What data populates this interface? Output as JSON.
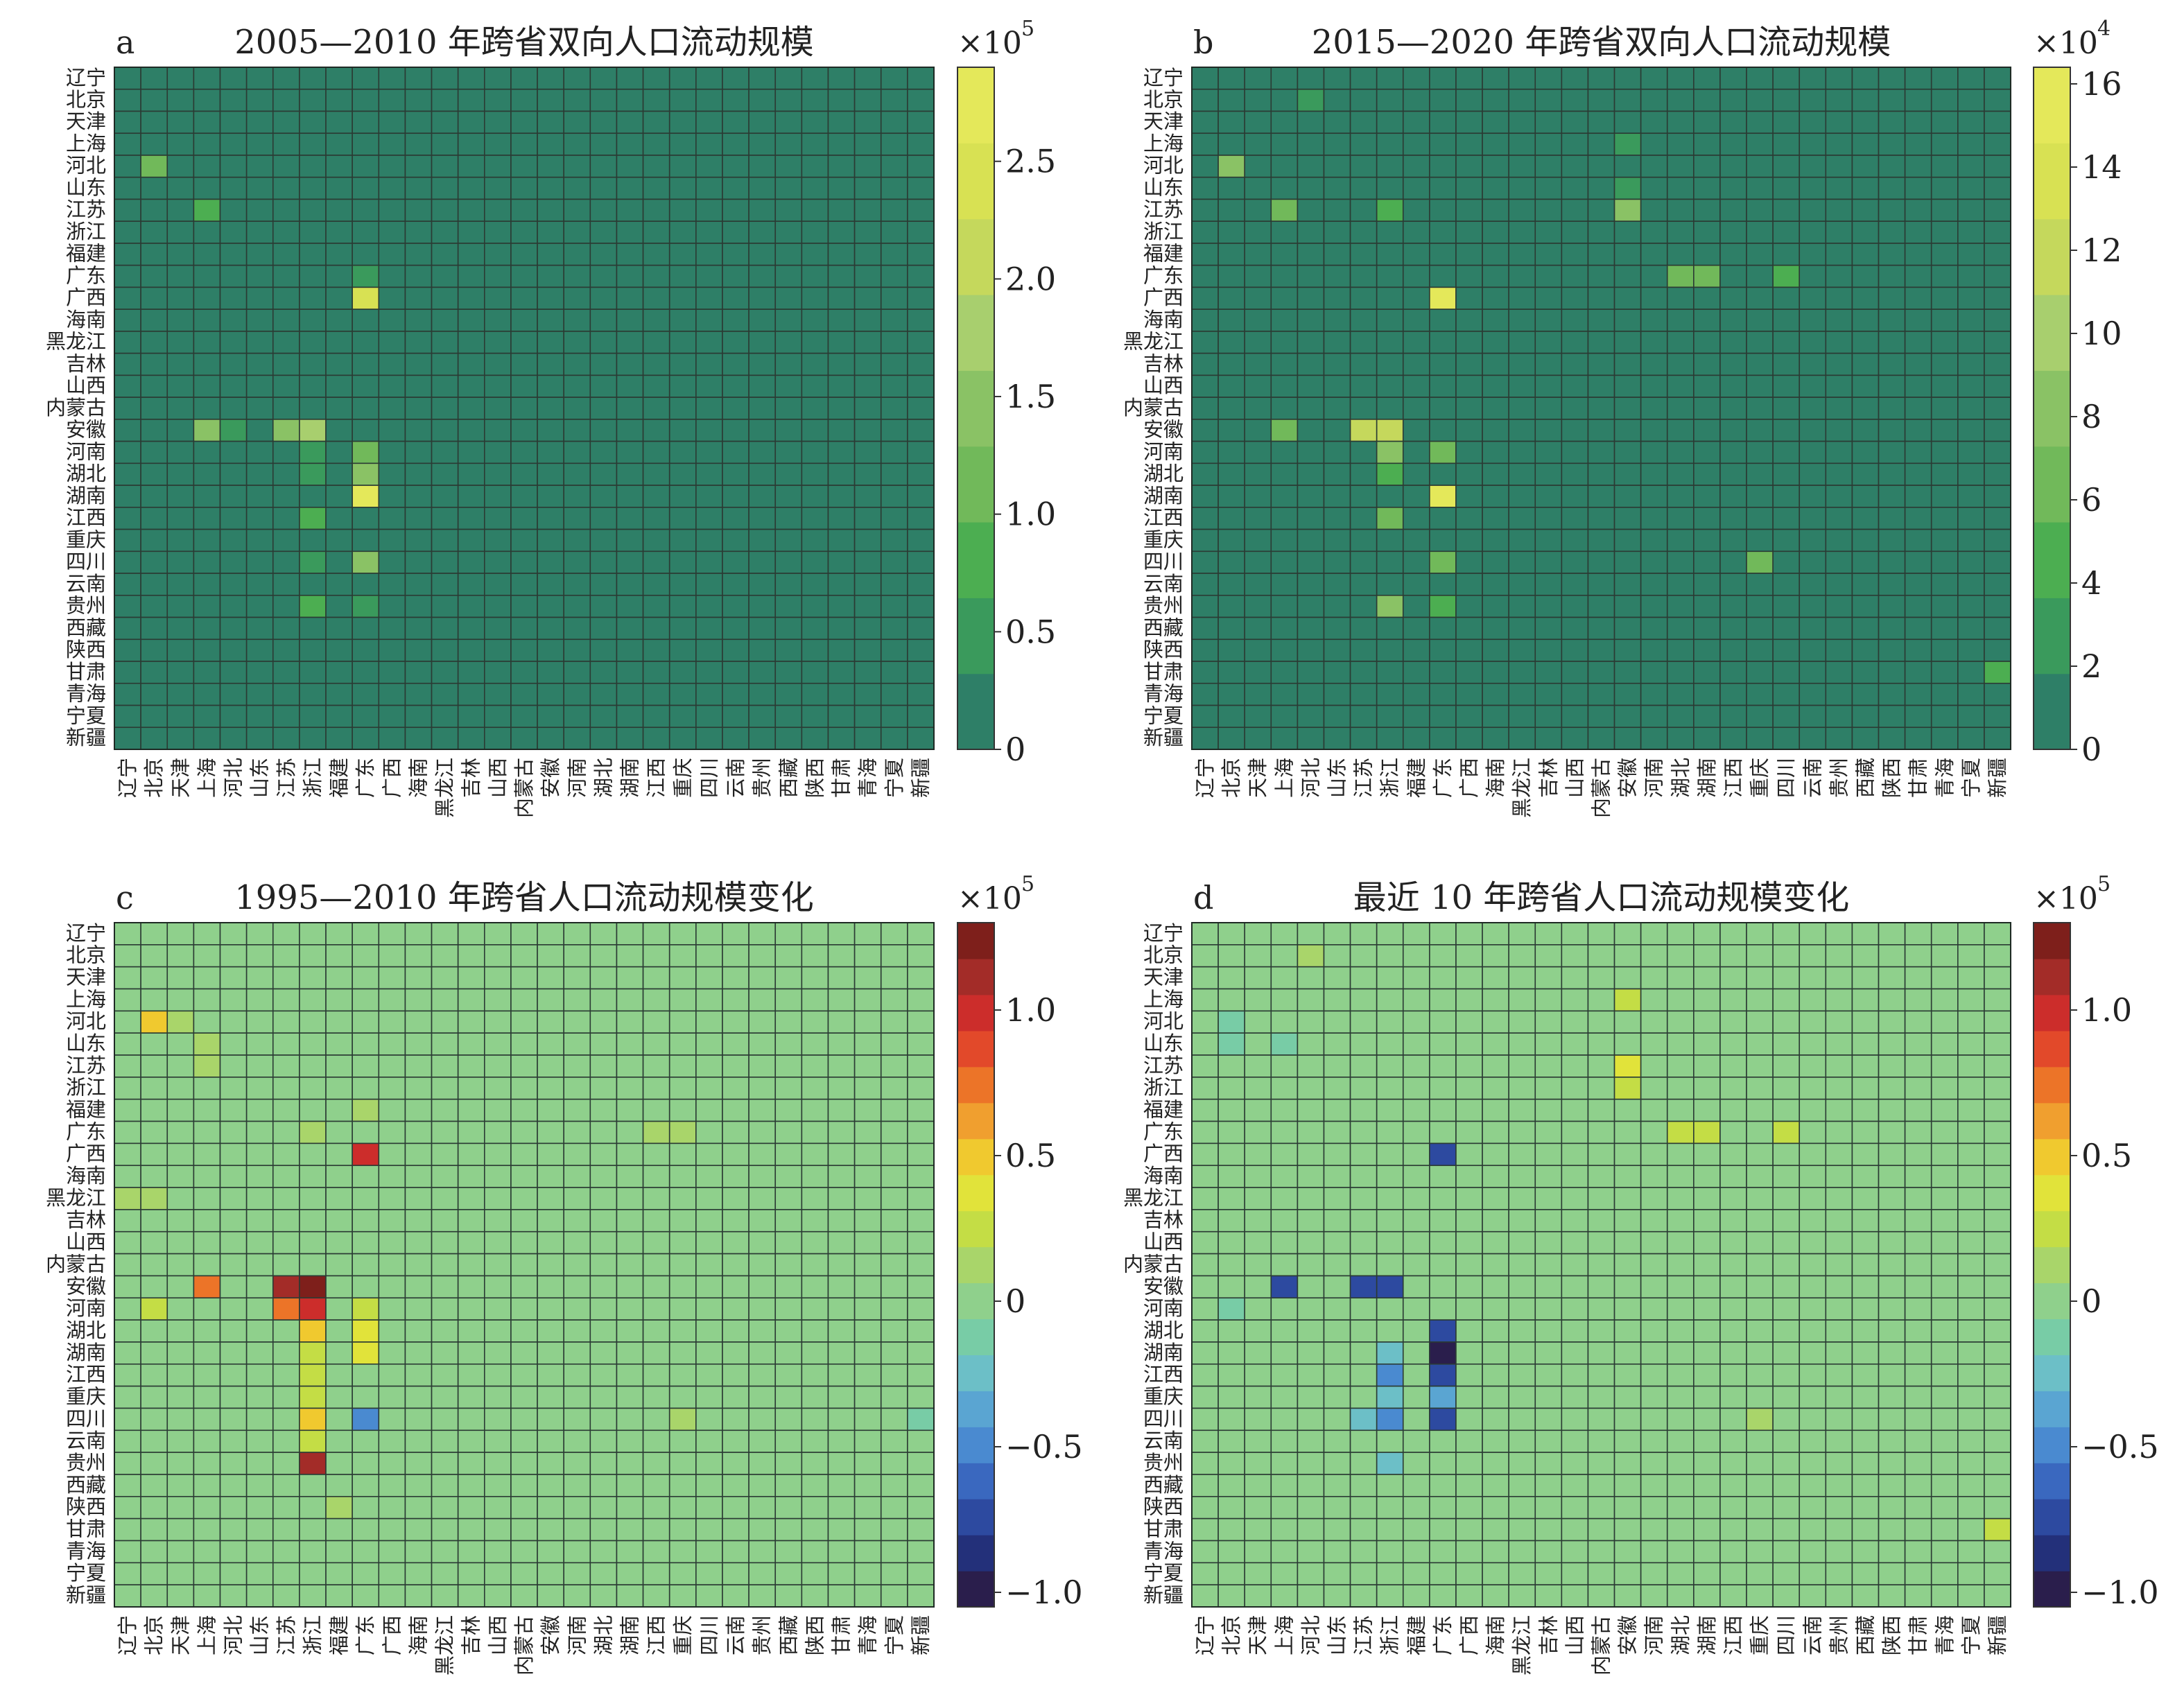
{
  "provinces": [
    "辽宁",
    "北京",
    "天津",
    "上海",
    "河北",
    "山东",
    "江苏",
    "浙江",
    "福建",
    "广东",
    "广西",
    "海南",
    "黑龙江",
    "吉林",
    "山西",
    "内蒙古",
    "安徽",
    "河南",
    "湖北",
    "湖南",
    "江西",
    "重庆",
    "四川",
    "云南",
    "贵州",
    "西藏",
    "陕西",
    "甘肃",
    "青海",
    "宁夏",
    "新疆"
  ],
  "chart_data": [
    {
      "type": "heatmap",
      "panel_letter": "a",
      "title": "2005—2010 年跨省双向人口流动规模",
      "scale_label": "×10",
      "scale_exp": "5",
      "vmin": 0,
      "vmax": 2.9,
      "colorbar_ticks": [
        0,
        0.5,
        1.0,
        1.5,
        2.0,
        2.5
      ],
      "colorbar_tick_labels": [
        "0",
        "0.5",
        "1.0",
        "1.5",
        "2.0",
        "2.5"
      ],
      "cmap": [
        "#2e7f67",
        "#3a9a5c",
        "#4cae51",
        "#71b95a",
        "#8ac265",
        "#a8cf6e",
        "#c5d85c",
        "#d8e153",
        "#e4e85a"
      ],
      "background_value": 0.15,
      "cells": [
        {
          "r": 4,
          "c": 1,
          "v": 1.2
        },
        {
          "r": 6,
          "c": 3,
          "v": 0.9
        },
        {
          "r": 10,
          "c": 9,
          "v": 2.5
        },
        {
          "r": 9,
          "c": 9,
          "v": 0.5
        },
        {
          "r": 16,
          "c": 3,
          "v": 1.5
        },
        {
          "r": 16,
          "c": 6,
          "v": 1.6
        },
        {
          "r": 16,
          "c": 7,
          "v": 1.8
        },
        {
          "r": 17,
          "c": 7,
          "v": 0.6
        },
        {
          "r": 17,
          "c": 9,
          "v": 1.1
        },
        {
          "r": 18,
          "c": 9,
          "v": 1.3
        },
        {
          "r": 19,
          "c": 9,
          "v": 2.9
        },
        {
          "r": 20,
          "c": 7,
          "v": 0.7
        },
        {
          "r": 22,
          "c": 7,
          "v": 0.6
        },
        {
          "r": 22,
          "c": 9,
          "v": 1.5
        },
        {
          "r": 24,
          "c": 7,
          "v": 0.8
        },
        {
          "r": 24,
          "c": 9,
          "v": 0.5
        },
        {
          "r": 16,
          "c": 4,
          "v": 0.4
        },
        {
          "r": 17,
          "c": 1,
          "v": 0.3
        },
        {
          "r": 18,
          "c": 7,
          "v": 0.5
        }
      ]
    },
    {
      "type": "heatmap",
      "panel_letter": "b",
      "title": "2015—2020 年跨省双向人口流动规模",
      "scale_label": "×10",
      "scale_exp": "4",
      "vmin": 0,
      "vmax": 16.4,
      "colorbar_ticks": [
        0,
        2,
        4,
        6,
        8,
        10,
        12,
        14,
        16
      ],
      "colorbar_tick_labels": [
        "0",
        "2",
        "4",
        "6",
        "8",
        "10",
        "12",
        "14",
        "16"
      ],
      "cmap": [
        "#2e7f67",
        "#3a9a5c",
        "#4cae51",
        "#71b95a",
        "#8ac265",
        "#a8cf6e",
        "#c5d85c",
        "#d8e153",
        "#e4e85a"
      ],
      "background_value": 1.2,
      "cells": [
        {
          "r": 4,
          "c": 1,
          "v": 8
        },
        {
          "r": 1,
          "c": 4,
          "v": 3
        },
        {
          "r": 6,
          "c": 3,
          "v": 7
        },
        {
          "r": 6,
          "c": 7,
          "v": 5
        },
        {
          "r": 6,
          "c": 16,
          "v": 8
        },
        {
          "r": 9,
          "c": 18,
          "v": 6
        },
        {
          "r": 9,
          "c": 19,
          "v": 7
        },
        {
          "r": 9,
          "c": 22,
          "v": 5
        },
        {
          "r": 10,
          "c": 9,
          "v": 15
        },
        {
          "r": 16,
          "c": 3,
          "v": 6
        },
        {
          "r": 16,
          "c": 6,
          "v": 11
        },
        {
          "r": 16,
          "c": 7,
          "v": 12
        },
        {
          "r": 17,
          "c": 7,
          "v": 8
        },
        {
          "r": 17,
          "c": 9,
          "v": 6
        },
        {
          "r": 19,
          "c": 9,
          "v": 15
        },
        {
          "r": 20,
          "c": 7,
          "v": 6
        },
        {
          "r": 22,
          "c": 9,
          "v": 6
        },
        {
          "r": 22,
          "c": 21,
          "v": 6
        },
        {
          "r": 24,
          "c": 7,
          "v": 9
        },
        {
          "r": 24,
          "c": 9,
          "v": 5
        },
        {
          "r": 3,
          "c": 16,
          "v": 3
        },
        {
          "r": 5,
          "c": 16,
          "v": 3
        },
        {
          "r": 27,
          "c": 30,
          "v": 4
        },
        {
          "r": 18,
          "c": 7,
          "v": 5
        }
      ]
    },
    {
      "type": "heatmap",
      "panel_letter": "c",
      "title": "1995—2010 年跨省人口流动规模变化",
      "scale_label": "×10",
      "scale_exp": "5",
      "vmin": -1.05,
      "vmax": 1.3,
      "colorbar_ticks": [
        -1.0,
        -0.5,
        0,
        0.5,
        1.0
      ],
      "colorbar_tick_labels": [
        "−1.0",
        "−0.5",
        "0",
        "0.5",
        "1.0"
      ],
      "cmap": [
        "#2a1e4c",
        "#23307a",
        "#2d4aa0",
        "#3a68bf",
        "#4a8ad0",
        "#5aa5d2",
        "#6cbfc7",
        "#78cca6",
        "#8fd08c",
        "#a9d56a",
        "#c4dd45",
        "#e1e33a",
        "#f0c92f",
        "#f09f2f",
        "#ec7428",
        "#e2492a",
        "#cc2d2b",
        "#a32c28",
        "#7e1f1b"
      ],
      "background_value": 0.03,
      "cells": [
        {
          "r": 4,
          "c": 1,
          "v": 0.45
        },
        {
          "r": 4,
          "c": 2,
          "v": 0.15
        },
        {
          "r": 5,
          "c": 3,
          "v": 0.12
        },
        {
          "r": 6,
          "c": 3,
          "v": 0.18
        },
        {
          "r": 10,
          "c": 9,
          "v": 0.95
        },
        {
          "r": 16,
          "c": 3,
          "v": 0.7
        },
        {
          "r": 16,
          "c": 6,
          "v": 1.15
        },
        {
          "r": 16,
          "c": 7,
          "v": 1.2
        },
        {
          "r": 17,
          "c": 6,
          "v": 0.75
        },
        {
          "r": 17,
          "c": 7,
          "v": 0.95
        },
        {
          "r": 17,
          "c": 1,
          "v": 0.25
        },
        {
          "r": 17,
          "c": 9,
          "v": 0.3
        },
        {
          "r": 18,
          "c": 7,
          "v": 0.45
        },
        {
          "r": 18,
          "c": 9,
          "v": 0.35
        },
        {
          "r": 19,
          "c": 7,
          "v": 0.3
        },
        {
          "r": 19,
          "c": 9,
          "v": 0.4
        },
        {
          "r": 20,
          "c": 7,
          "v": 0.3
        },
        {
          "r": 21,
          "c": 7,
          "v": 0.2
        },
        {
          "r": 22,
          "c": 7,
          "v": 0.5
        },
        {
          "r": 22,
          "c": 9,
          "v": -0.5
        },
        {
          "r": 23,
          "c": 7,
          "v": 0.3
        },
        {
          "r": 24,
          "c": 7,
          "v": 1.1
        },
        {
          "r": 22,
          "c": 30,
          "v": -0.12
        },
        {
          "r": 8,
          "c": 9,
          "v": 0.12
        },
        {
          "r": 9,
          "c": 7,
          "v": 0.1
        },
        {
          "r": 12,
          "c": 0,
          "v": 0.1
        },
        {
          "r": 12,
          "c": 1,
          "v": 0.1
        },
        {
          "r": 26,
          "c": 8,
          "v": 0.12
        },
        {
          "r": 22,
          "c": 21,
          "v": 0.15
        },
        {
          "r": 9,
          "c": 20,
          "v": 0.1
        },
        {
          "r": 9,
          "c": 21,
          "v": 0.1
        }
      ]
    },
    {
      "type": "heatmap",
      "panel_letter": "d",
      "title": "最近 10 年跨省人口流动规模变化",
      "scale_label": "×10",
      "scale_exp": "5",
      "vmin": -1.05,
      "vmax": 1.3,
      "colorbar_ticks": [
        -1.0,
        -0.5,
        0,
        0.5,
        1.0
      ],
      "colorbar_tick_labels": [
        "−1.0",
        "−0.5",
        "0",
        "0.5",
        "1.0"
      ],
      "cmap": [
        "#2a1e4c",
        "#23307a",
        "#2d4aa0",
        "#3a68bf",
        "#4a8ad0",
        "#5aa5d2",
        "#6cbfc7",
        "#78cca6",
        "#8fd08c",
        "#a9d56a",
        "#c4dd45",
        "#e1e33a",
        "#f0c92f",
        "#f09f2f",
        "#ec7428",
        "#e2492a",
        "#cc2d2b",
        "#a32c28",
        "#7e1f1b"
      ],
      "background_value": 0.02,
      "cells": [
        {
          "r": 1,
          "c": 4,
          "v": 0.12
        },
        {
          "r": 3,
          "c": 16,
          "v": 0.3
        },
        {
          "r": 4,
          "c": 1,
          "v": -0.15
        },
        {
          "r": 5,
          "c": 1,
          "v": -0.15
        },
        {
          "r": 5,
          "c": 3,
          "v": -0.15
        },
        {
          "r": 6,
          "c": 16,
          "v": 0.35
        },
        {
          "r": 7,
          "c": 16,
          "v": 0.3
        },
        {
          "r": 9,
          "c": 18,
          "v": 0.25
        },
        {
          "r": 9,
          "c": 19,
          "v": 0.3
        },
        {
          "r": 9,
          "c": 22,
          "v": 0.2
        },
        {
          "r": 10,
          "c": 9,
          "v": -0.8
        },
        {
          "r": 16,
          "c": 3,
          "v": -0.8
        },
        {
          "r": 16,
          "c": 6,
          "v": -0.7
        },
        {
          "r": 16,
          "c": 7,
          "v": -0.7
        },
        {
          "r": 18,
          "c": 9,
          "v": -0.7
        },
        {
          "r": 19,
          "c": 9,
          "v": -1.0
        },
        {
          "r": 20,
          "c": 7,
          "v": -0.5
        },
        {
          "r": 20,
          "c": 9,
          "v": -0.8
        },
        {
          "r": 21,
          "c": 9,
          "v": -0.4
        },
        {
          "r": 22,
          "c": 7,
          "v": -0.5
        },
        {
          "r": 22,
          "c": 9,
          "v": -0.8
        },
        {
          "r": 24,
          "c": 7,
          "v": -0.3
        },
        {
          "r": 22,
          "c": 21,
          "v": 0.15
        },
        {
          "r": 27,
          "c": 30,
          "v": 0.2
        },
        {
          "r": 19,
          "c": 7,
          "v": -0.3
        },
        {
          "r": 21,
          "c": 7,
          "v": -0.2
        },
        {
          "r": 17,
          "c": 1,
          "v": -0.15
        },
        {
          "r": 22,
          "c": 6,
          "v": -0.3
        }
      ]
    }
  ]
}
